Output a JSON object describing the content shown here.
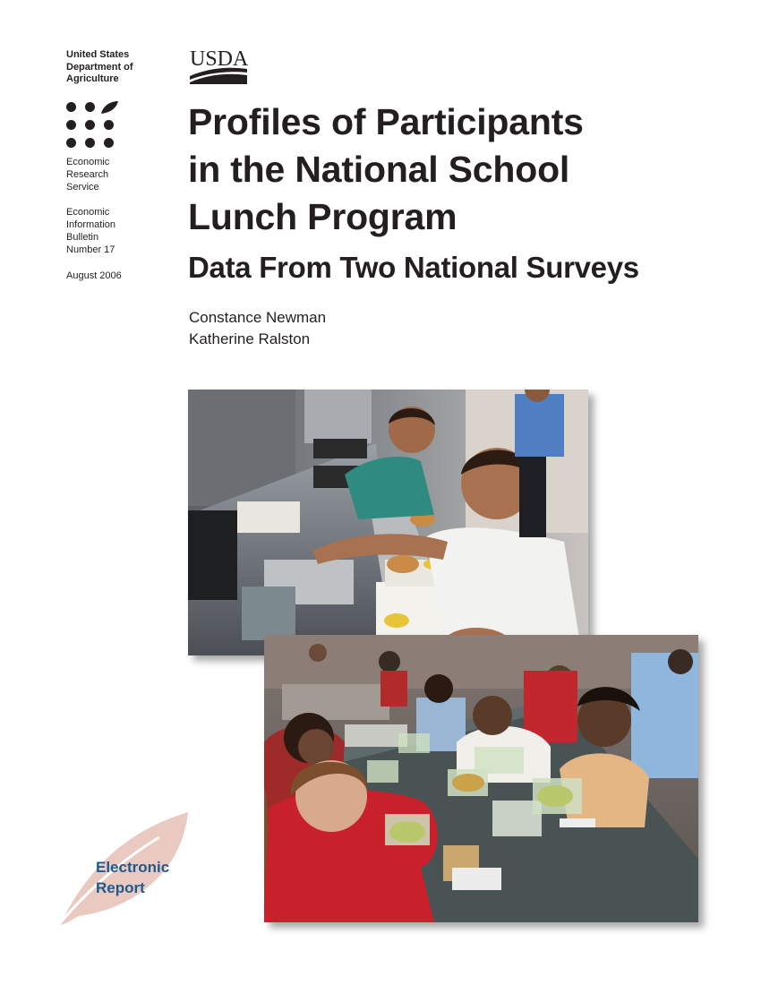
{
  "agency": {
    "lines": [
      "United States",
      "Department of",
      "Agriculture"
    ]
  },
  "logos": {
    "usda_text": "USDA",
    "ers_icon": "ers-dots-leaf-icon"
  },
  "service": {
    "lines": [
      "Economic",
      "Research",
      "Service"
    ]
  },
  "bulletin": {
    "lines": [
      "Economic",
      "Information",
      "Bulletin",
      "Number 17"
    ]
  },
  "date": "August 2006",
  "title": {
    "lines": [
      "Profiles of Participants",
      "in the National School",
      "Lunch Program"
    ]
  },
  "subtitle": "Data From Two National Surveys",
  "authors": [
    "Constance Newman",
    "Katherine Ralston"
  ],
  "badge": {
    "lines": [
      "Electronic",
      "Report"
    ]
  },
  "colors": {
    "text": "#231f20",
    "badge_text": "#1f5a8f",
    "leaf": "#e9c9c0"
  }
}
